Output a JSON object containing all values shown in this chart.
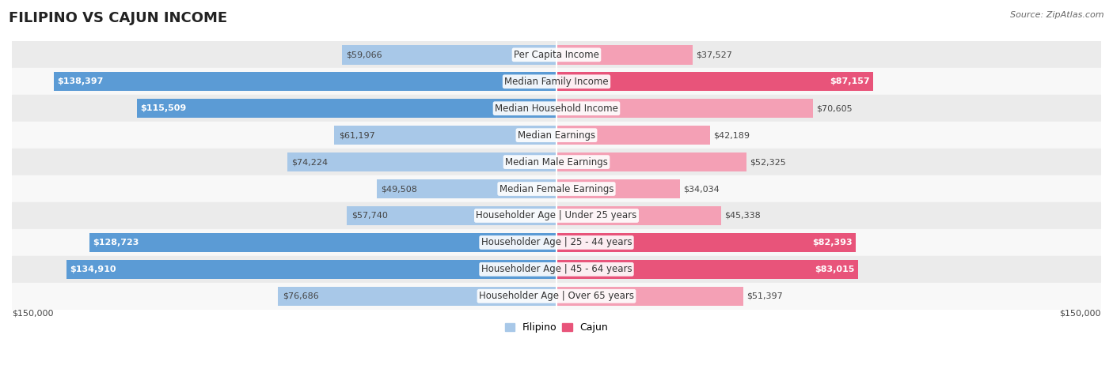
{
  "title": "FILIPINO VS CAJUN INCOME",
  "source": "Source: ZipAtlas.com",
  "categories": [
    "Per Capita Income",
    "Median Family Income",
    "Median Household Income",
    "Median Earnings",
    "Median Male Earnings",
    "Median Female Earnings",
    "Householder Age | Under 25 years",
    "Householder Age | 25 - 44 years",
    "Householder Age | 45 - 64 years",
    "Householder Age | Over 65 years"
  ],
  "filipino_values": [
    59066,
    138397,
    115509,
    61197,
    74224,
    49508,
    57740,
    128723,
    134910,
    76686
  ],
  "cajun_values": [
    37527,
    87157,
    70605,
    42189,
    52325,
    34034,
    45338,
    82393,
    83015,
    51397
  ],
  "filipino_dark_indices": [
    1,
    2,
    7,
    8
  ],
  "cajun_dark_indices": [
    1,
    7,
    8
  ],
  "max_value": 150000,
  "filipino_color_light": "#a8c8e8",
  "filipino_color_dark": "#5b9bd5",
  "cajun_color_light": "#f4a0b5",
  "cajun_color_dark": "#e8547a",
  "bg_color": "#ffffff",
  "row_bg_light": "#ebebeb",
  "row_bg_white": "#f8f8f8",
  "title_fontsize": 13,
  "label_fontsize": 8.5,
  "value_fontsize": 8,
  "legend_fontsize": 9,
  "source_fontsize": 8
}
